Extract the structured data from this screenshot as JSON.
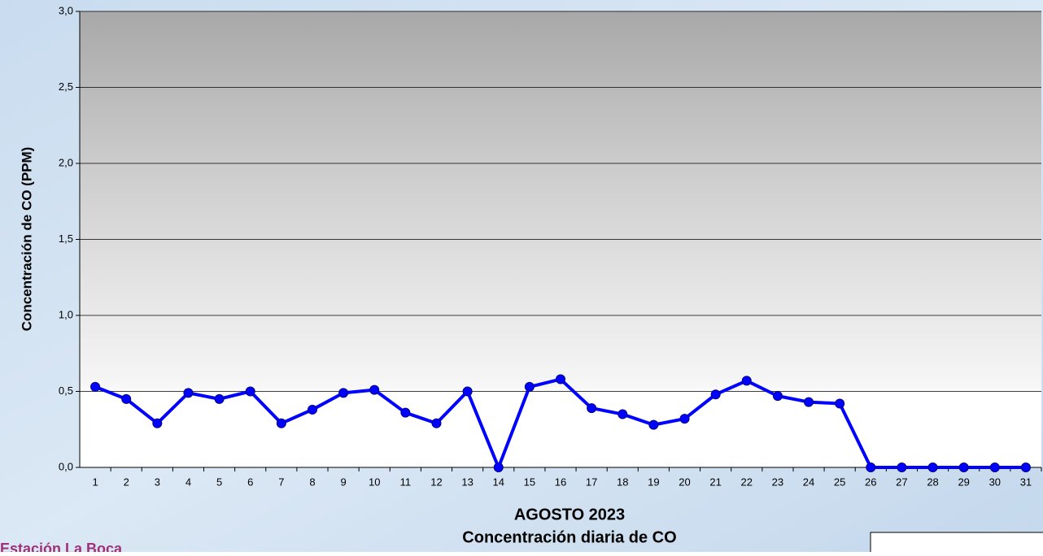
{
  "chart_data": {
    "type": "line",
    "title": "AGOSTO 2023",
    "subtitle": "Concentración diaria de CO",
    "y_label": "Concentración de CO (PPM)",
    "station": "Estación La Boca",
    "categories": [
      "1",
      "2",
      "3",
      "4",
      "5",
      "6",
      "7",
      "8",
      "9",
      "10",
      "11",
      "12",
      "13",
      "14",
      "15",
      "16",
      "17",
      "18",
      "19",
      "20",
      "21",
      "22",
      "23",
      "24",
      "25",
      "26",
      "27",
      "28",
      "29",
      "30",
      "31"
    ],
    "values": [
      0.53,
      0.45,
      0.29,
      0.49,
      0.45,
      0.5,
      0.29,
      0.38,
      0.49,
      0.51,
      0.36,
      0.29,
      0.5,
      0,
      0.53,
      0.58,
      0.39,
      0.35,
      0.28,
      0.32,
      0.48,
      0.57,
      0.47,
      0.43,
      0.42,
      0,
      0,
      0,
      0,
      0,
      0
    ],
    "color": "#0000ff",
    "ylim": [
      0,
      3
    ],
    "yticks": [
      {
        "value": 0,
        "label": "0,0"
      },
      {
        "value": 0.5,
        "label": "0,5"
      },
      {
        "value": 1,
        "label": "1,0"
      },
      {
        "value": 1.5,
        "label": "1,5"
      },
      {
        "value": 2,
        "label": "2,0"
      },
      {
        "value": 2.5,
        "label": "2,5"
      },
      {
        "value": 3,
        "label": "3,0"
      }
    ],
    "grid": true
  }
}
